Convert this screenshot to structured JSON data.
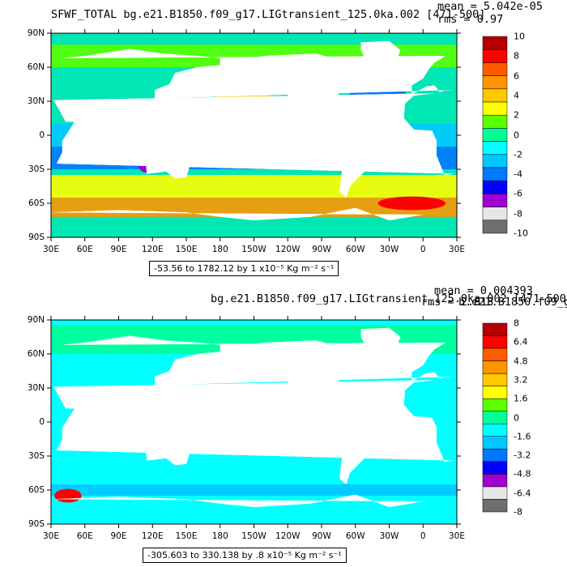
{
  "panels": [
    {
      "title": "SFWF_TOTAL  bg.e21.B1850.f09_g17.LIGtransient_125.0ka.002  [471-500]",
      "mean": "mean = 5.042e-05",
      "rms": "rms = 0.97",
      "range": "-53.56 to 1782.12 by 1 x10⁻⁵ Kg m⁻² s⁻¹",
      "colorbar_labels": [
        "10",
        "8",
        "6",
        "4",
        "2",
        "0",
        "-2",
        "-4",
        "-6",
        "-8",
        "-10"
      ],
      "colors": [
        "#b40000",
        "#ff0000",
        "#ff5a00",
        "#ff9600",
        "#ffc800",
        "#ffff00",
        "#5aff00",
        "#00ff96",
        "#00ffff",
        "#00c8ff",
        "#0078ff",
        "#0000ff",
        "#a000d2",
        "#e6e6e6",
        "#6e6e6e"
      ],
      "ocean_base": "#00e6b4",
      "bands": [
        {
          "lat": [
            60,
            80
          ],
          "color": "#5aff00"
        },
        {
          "lat": [
            -10,
            10
          ],
          "color": "#00c8ff"
        },
        {
          "lat": [
            -30,
            -10
          ],
          "color": "#0078ff"
        },
        {
          "lat": [
            -55,
            -35
          ],
          "color": "#ffff00"
        },
        {
          "lat": [
            -72,
            -55
          ],
          "color": "#ff9600"
        }
      ],
      "blobs": [
        {
          "lon": -150,
          "lat": 5,
          "rx": 55,
          "ry": 3,
          "color": "#ff0000"
        },
        {
          "lon": -170,
          "lat": 5,
          "rx": 30,
          "ry": 2,
          "color": "#b40000"
        },
        {
          "lon": -125,
          "lat": -13,
          "rx": 20,
          "ry": 6,
          "color": "#0000ff"
        },
        {
          "lon": -30,
          "lat": -15,
          "rx": 20,
          "ry": 8,
          "color": "#0000ff"
        },
        {
          "lon": -160,
          "lat": 45,
          "rx": 30,
          "ry": 9,
          "color": "#ffc800"
        },
        {
          "lon": -40,
          "lat": 35,
          "rx": 25,
          "ry": 10,
          "color": "#0078ff"
        },
        {
          "lon": 115,
          "lat": -25,
          "rx": 8,
          "ry": 4,
          "color": "#a000d2"
        },
        {
          "lon": -10,
          "lat": -60,
          "rx": 30,
          "ry": 3,
          "color": "#ff0000"
        }
      ]
    },
    {
      "title": "bg.e21.B1850.f09_g17.LIGtransient_125.0ka.002  [471-500]",
      "mean": "mean = 0.004393",
      "rms": "rms = 2.813",
      "overlay": "b.e21.B1850.f09_g1",
      "range": "-305.603 to 330.138 by .8 x10⁻⁵ Kg m⁻² s⁻¹",
      "colorbar_labels": [
        "8",
        "6.4",
        "4.8",
        "3.2",
        "1.6",
        "0",
        "-1.6",
        "-3.2",
        "-4.8",
        "-6.4",
        "-8"
      ],
      "colors": [
        "#b40000",
        "#ff0000",
        "#ff5a00",
        "#ff9600",
        "#ffc800",
        "#ffff00",
        "#5aff00",
        "#00ff96",
        "#00ffff",
        "#00c8ff",
        "#0078ff",
        "#0000ff",
        "#a000d2",
        "#e6e6e6",
        "#6e6e6e"
      ],
      "ocean_base": "#00ffff",
      "bands": [
        {
          "lat": [
            60,
            85
          ],
          "color": "#00ff96"
        },
        {
          "lat": [
            -65,
            -55
          ],
          "color": "#00c8ff"
        }
      ],
      "blobs": [
        {
          "lon": -150,
          "lat": 8,
          "rx": 45,
          "ry": 2.5,
          "color": "#ffc800"
        },
        {
          "lon": -175,
          "lat": -8,
          "rx": 15,
          "ry": 2,
          "color": "#0000ff"
        },
        {
          "lon": 75,
          "lat": 10,
          "rx": 12,
          "ry": 3,
          "color": "#ffc800"
        },
        {
          "lon": 45,
          "lat": -65,
          "rx": 12,
          "ry": 3,
          "color": "#ff0000"
        }
      ]
    }
  ],
  "lon_ticks": [
    "30E",
    "60E",
    "90E",
    "120E",
    "150E",
    "180",
    "150W",
    "120W",
    "90W",
    "60W",
    "30W",
    "0",
    "30E"
  ],
  "lat_ticks": [
    "90N",
    "60N",
    "30N",
    "0",
    "30S",
    "60S",
    "90S"
  ]
}
